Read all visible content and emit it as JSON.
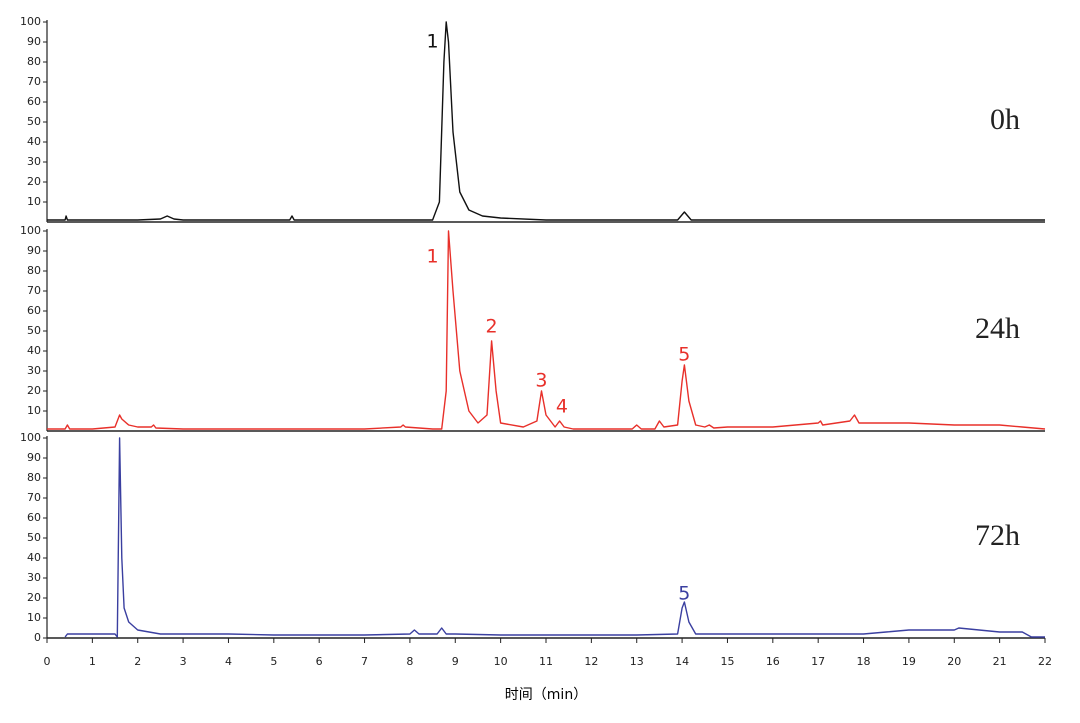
{
  "chart_data": [
    {
      "type": "line",
      "label": "0h",
      "color": "#111111",
      "x": [
        0,
        0.4,
        0.42,
        0.45,
        1,
        2,
        2.5,
        2.65,
        2.8,
        3,
        4,
        5,
        5.35,
        5.4,
        5.45,
        6,
        7,
        8,
        8.5,
        8.65,
        8.75,
        8.8,
        8.85,
        8.95,
        9.1,
        9.3,
        9.6,
        10,
        11,
        12,
        13,
        13.9,
        14.05,
        14.2,
        15,
        16,
        17,
        18,
        19,
        20,
        21,
        22
      ],
      "values": [
        1,
        1,
        3,
        1,
        1,
        1,
        1.5,
        3,
        1.5,
        1,
        1,
        1,
        1,
        3,
        1,
        1,
        1,
        1,
        1,
        10,
        80,
        100,
        90,
        45,
        15,
        6,
        3,
        2,
        1,
        1,
        1,
        1,
        5,
        1,
        1,
        1,
        1,
        1,
        1,
        1,
        1,
        1
      ],
      "xlim": [
        0,
        22
      ],
      "ylim": [
        0,
        100
      ],
      "yticks": [
        10,
        20,
        30,
        40,
        50,
        60,
        70,
        80,
        90,
        100
      ],
      "annotations": [
        {
          "text": "1",
          "x": 8.5,
          "y": 90
        }
      ]
    },
    {
      "type": "line",
      "label": "24h",
      "color": "#e8302a",
      "x": [
        0,
        0.4,
        0.45,
        0.5,
        1,
        1.5,
        1.6,
        1.65,
        1.8,
        2,
        2.3,
        2.35,
        2.4,
        3,
        4,
        5,
        6,
        7,
        7.8,
        7.85,
        7.9,
        8.5,
        8.7,
        8.8,
        8.85,
        8.95,
        9.1,
        9.3,
        9.5,
        9.7,
        9.8,
        9.9,
        10,
        10.5,
        10.8,
        10.9,
        11,
        11.2,
        11.3,
        11.4,
        11.6,
        12,
        12.9,
        13,
        13.1,
        13.4,
        13.5,
        13.6,
        13.9,
        14,
        14.05,
        14.15,
        14.3,
        14.5,
        14.6,
        14.7,
        15,
        16,
        17,
        17.05,
        17.1,
        17.7,
        17.8,
        17.9,
        18,
        19,
        20,
        21,
        21.5,
        22
      ],
      "values": [
        1,
        1,
        3,
        1,
        1,
        2,
        8,
        6,
        3,
        2,
        2,
        3,
        1.5,
        1,
        1,
        1,
        1,
        1,
        2,
        3,
        2,
        1,
        1,
        20,
        100,
        70,
        30,
        10,
        4,
        8,
        45,
        20,
        4,
        2,
        5,
        20,
        8,
        2,
        5,
        2,
        1,
        1,
        1,
        3,
        1,
        1,
        5,
        2,
        3,
        25,
        33,
        15,
        3,
        2,
        3,
        1.5,
        2,
        2,
        4,
        5,
        3,
        5,
        8,
        4,
        4,
        4,
        3,
        3,
        2,
        1
      ],
      "xlim": [
        0,
        22
      ],
      "ylim": [
        0,
        100
      ],
      "yticks": [
        10,
        20,
        30,
        40,
        50,
        60,
        70,
        80,
        90,
        100
      ],
      "annotations": [
        {
          "text": "1",
          "x": 8.5,
          "y": 87
        },
        {
          "text": "2",
          "x": 9.8,
          "y": 52
        },
        {
          "text": "3",
          "x": 10.9,
          "y": 25
        },
        {
          "text": "4",
          "x": 11.35,
          "y": 12
        },
        {
          "text": "5",
          "x": 14.05,
          "y": 38
        }
      ]
    },
    {
      "type": "line",
      "label": "72h",
      "color": "#3a3fa0",
      "x": [
        0.4,
        0.45,
        1,
        1.5,
        1.55,
        1.58,
        1.6,
        1.65,
        1.7,
        1.8,
        2,
        2.5,
        3,
        4,
        5,
        6,
        7,
        8,
        8.1,
        8.2,
        8.6,
        8.7,
        8.8,
        9,
        10,
        11,
        12,
        13,
        13.9,
        14,
        14.05,
        14.15,
        14.3,
        15,
        16,
        17,
        18,
        18.5,
        19,
        20,
        20.1,
        21,
        21.5,
        21.7,
        22
      ],
      "values": [
        0.5,
        2,
        2,
        2,
        0.5,
        60,
        100,
        40,
        15,
        8,
        4,
        2,
        2,
        2,
        1.5,
        1.5,
        1.5,
        2,
        4,
        2,
        2,
        5,
        2,
        2,
        1.5,
        1.5,
        1.5,
        1.5,
        2,
        15,
        18,
        8,
        2,
        2,
        2,
        2,
        2,
        3,
        4,
        4,
        5,
        3,
        3,
        0.5,
        0.5
      ],
      "xlim": [
        0,
        22
      ],
      "ylim": [
        0,
        100
      ],
      "yticks": [
        0,
        10,
        20,
        30,
        40,
        50,
        60,
        70,
        80,
        90,
        100
      ],
      "xticks": [
        0,
        1,
        2,
        3,
        4,
        5,
        6,
        7,
        8,
        9,
        10,
        11,
        12,
        13,
        14,
        15,
        16,
        17,
        18,
        19,
        20,
        21,
        22
      ],
      "x_label": "时间（min）",
      "annotations": [
        {
          "text": "5",
          "x": 14.05,
          "y": 22
        }
      ]
    }
  ]
}
